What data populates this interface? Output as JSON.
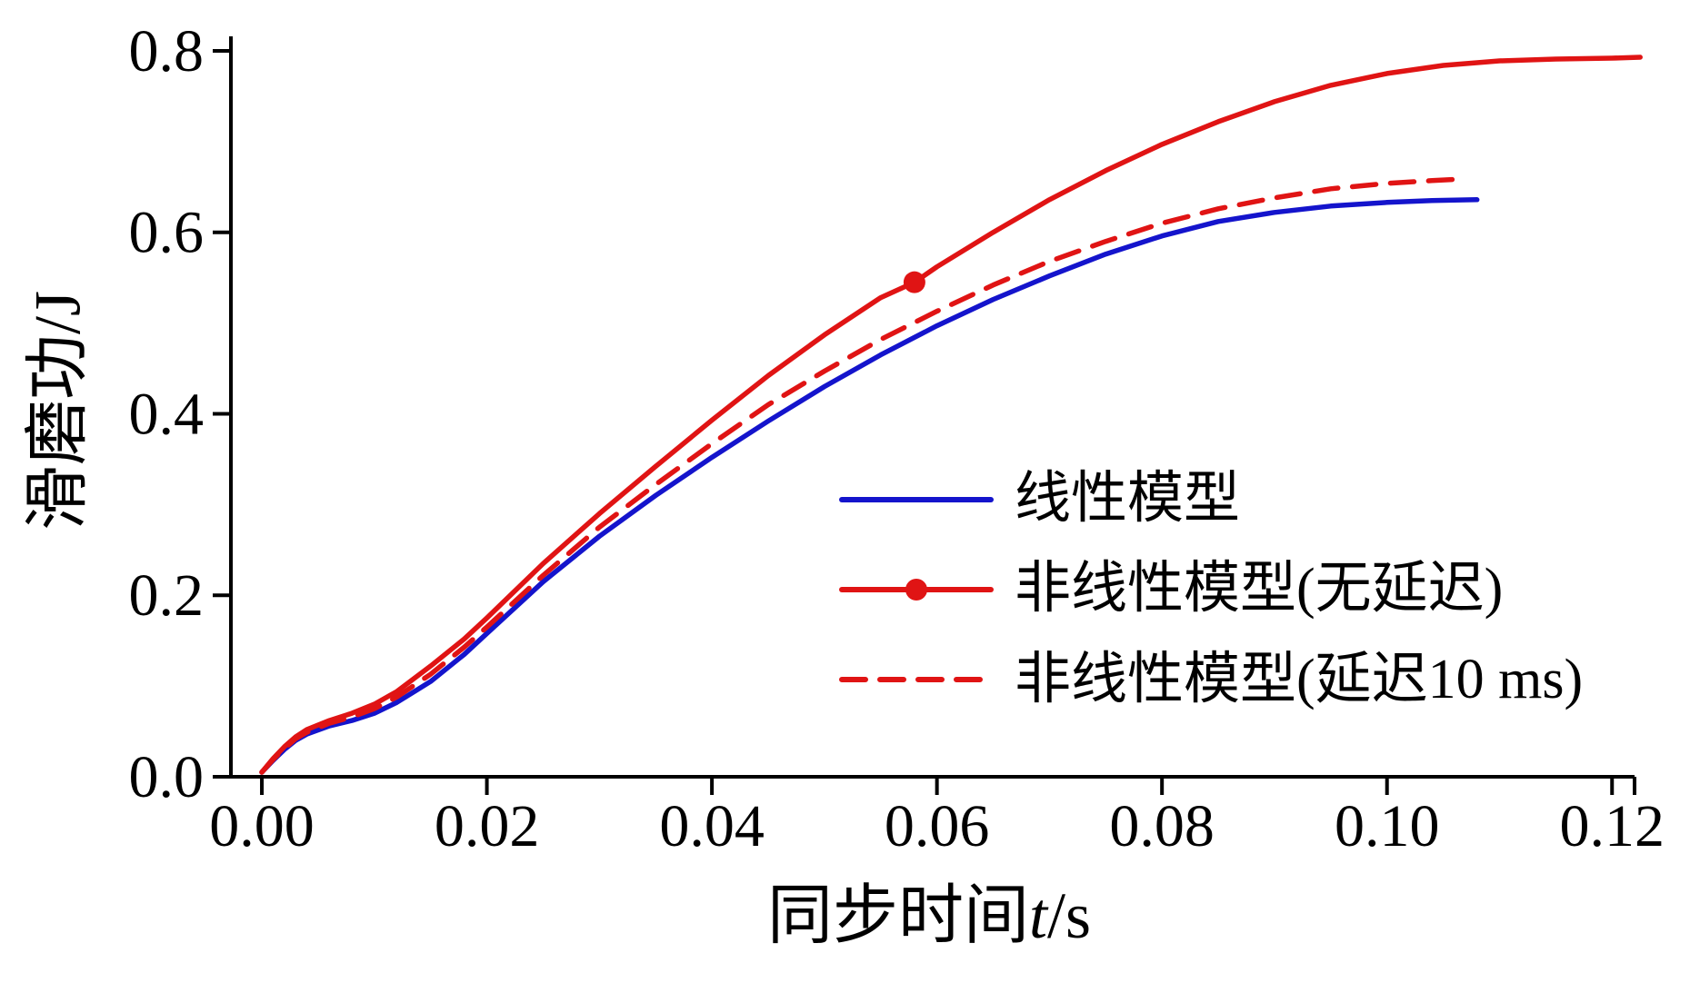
{
  "chart_data": {
    "type": "line",
    "title": "",
    "xlabel": "同步时间t/s",
    "xlabel_parts": {
      "prefix": "同步时间",
      "variable": "t",
      "suffix": "/s"
    },
    "ylabel": "滑磨功/J",
    "xlim": [
      -0.00275,
      0.122
    ],
    "ylim": [
      0,
      0.816
    ],
    "xticks": [
      0,
      0.02,
      0.04,
      0.06,
      0.08,
      0.1,
      0.12
    ],
    "xtick_labels": [
      "0.00",
      "0.02",
      "0.04",
      "0.06",
      "0.08",
      "0.10",
      "0.12"
    ],
    "xticks_minor": [
      0.122
    ],
    "yticks": [
      0,
      0.2,
      0.4,
      0.6,
      0.8
    ],
    "ytick_labels": [
      "0.0",
      "0.2",
      "0.4",
      "0.6",
      "0.8"
    ],
    "grid": false,
    "axis_color": "#000000",
    "background_color": "#ffffff",
    "legend_position": "center-right",
    "series": [
      {
        "key": "linear-model",
        "name": "线性模型",
        "color": "#1414cc",
        "style": "solid",
        "marker": "none",
        "x": [
          0,
          0.001,
          0.002,
          0.003,
          0.004,
          0.006,
          0.008,
          0.01,
          0.012,
          0.015,
          0.018,
          0.02,
          0.025,
          0.03,
          0.035,
          0.04,
          0.045,
          0.05,
          0.055,
          0.06,
          0.065,
          0.07,
          0.075,
          0.08,
          0.085,
          0.09,
          0.095,
          0.1,
          0.104,
          0.108
        ],
        "y": [
          0.005,
          0.018,
          0.03,
          0.04,
          0.047,
          0.056,
          0.062,
          0.07,
          0.082,
          0.105,
          0.135,
          0.158,
          0.215,
          0.265,
          0.31,
          0.352,
          0.392,
          0.43,
          0.465,
          0.497,
          0.526,
          0.552,
          0.576,
          0.596,
          0.612,
          0.622,
          0.629,
          0.633,
          0.635,
          0.636
        ]
      },
      {
        "key": "nonlinear-no-delay",
        "name": "非线性模型(无延迟)",
        "color": "#e01414",
        "style": "solid",
        "marker": "dot",
        "marker_at": [
          0.058,
          0.545
        ],
        "x": [
          0,
          0.001,
          0.002,
          0.003,
          0.004,
          0.006,
          0.008,
          0.01,
          0.012,
          0.015,
          0.018,
          0.02,
          0.025,
          0.03,
          0.035,
          0.04,
          0.045,
          0.05,
          0.055,
          0.058,
          0.06,
          0.065,
          0.07,
          0.075,
          0.08,
          0.085,
          0.09,
          0.095,
          0.1,
          0.105,
          0.11,
          0.115,
          0.12,
          0.1225
        ],
        "y": [
          0.005,
          0.02,
          0.033,
          0.044,
          0.052,
          0.062,
          0.07,
          0.08,
          0.094,
          0.122,
          0.152,
          0.175,
          0.235,
          0.29,
          0.342,
          0.393,
          0.442,
          0.487,
          0.528,
          0.545,
          0.562,
          0.6,
          0.636,
          0.668,
          0.697,
          0.722,
          0.744,
          0.762,
          0.775,
          0.784,
          0.789,
          0.791,
          0.792,
          0.793
        ]
      },
      {
        "key": "nonlinear-delay-10ms",
        "name": "非线性模型(延迟10 ms)",
        "color": "#e01414",
        "style": "dashed",
        "marker": "none",
        "x": [
          0,
          0.001,
          0.002,
          0.003,
          0.004,
          0.006,
          0.008,
          0.01,
          0.012,
          0.015,
          0.018,
          0.02,
          0.025,
          0.03,
          0.035,
          0.04,
          0.045,
          0.05,
          0.055,
          0.06,
          0.065,
          0.07,
          0.075,
          0.08,
          0.085,
          0.09,
          0.095,
          0.1,
          0.104,
          0.107
        ],
        "y": [
          0.005,
          0.019,
          0.031,
          0.042,
          0.049,
          0.059,
          0.066,
          0.075,
          0.088,
          0.113,
          0.143,
          0.165,
          0.222,
          0.275,
          0.322,
          0.367,
          0.41,
          0.447,
          0.482,
          0.513,
          0.542,
          0.568,
          0.59,
          0.61,
          0.626,
          0.638,
          0.648,
          0.654,
          0.657,
          0.659
        ]
      }
    ]
  }
}
